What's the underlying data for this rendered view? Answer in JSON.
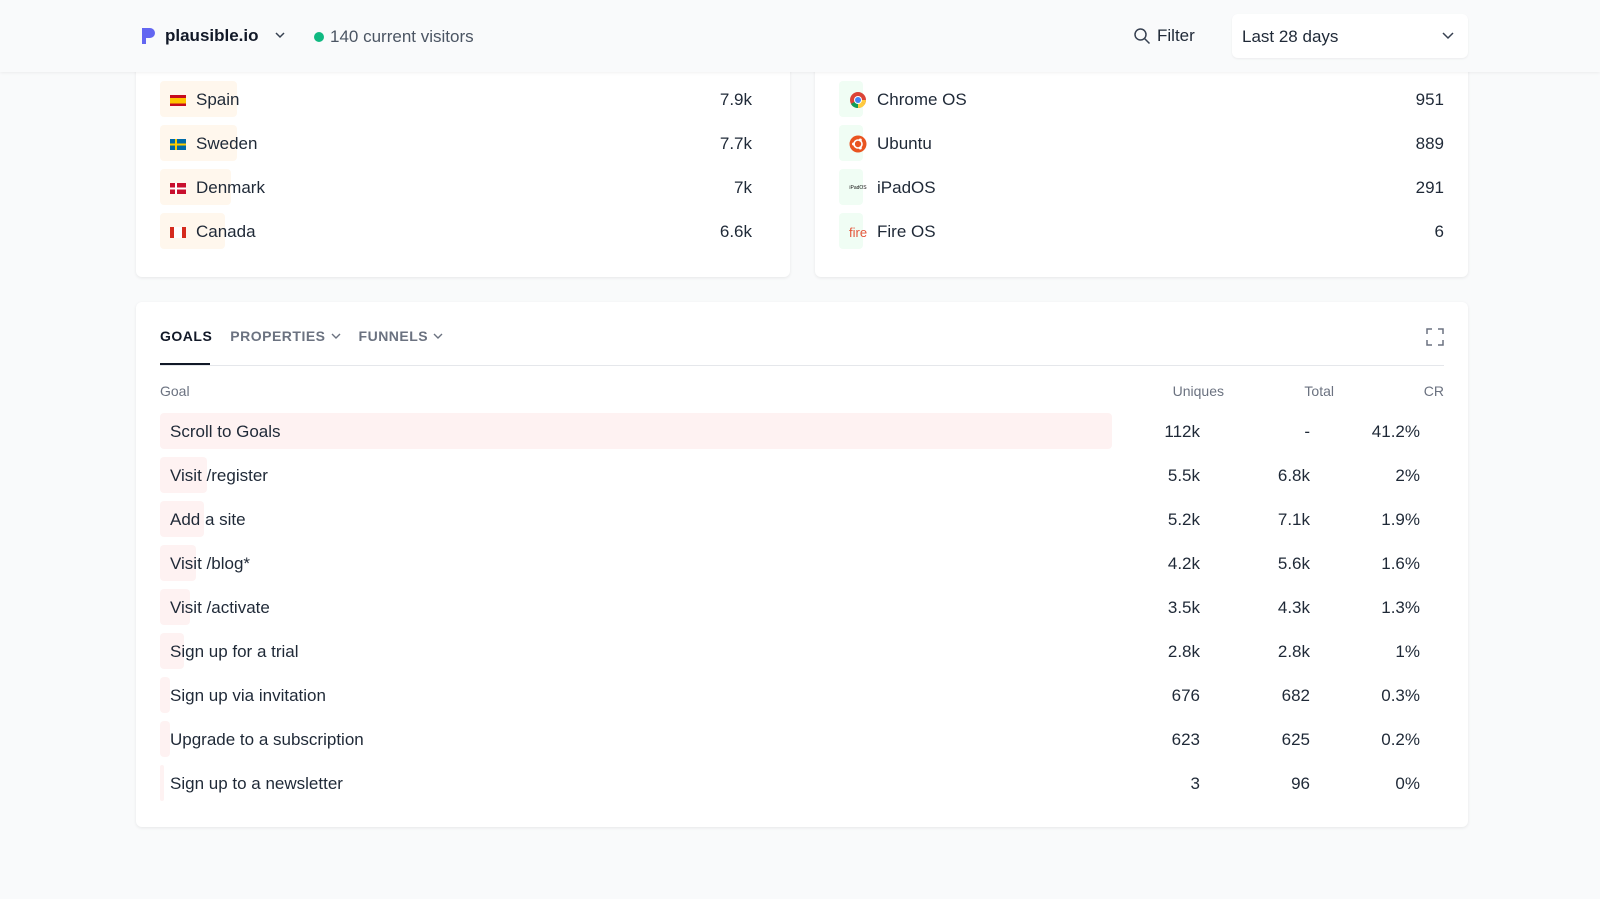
{
  "header": {
    "site": "plausible.io",
    "visitors": "140 current visitors",
    "filter": "Filter",
    "period": "Last 28 days"
  },
  "countries": [
    {
      "name": "Spain",
      "value": "7.9k",
      "bar": 0.13,
      "flag": "es"
    },
    {
      "name": "Sweden",
      "value": "7.7k",
      "bar": 0.13,
      "flag": "se"
    },
    {
      "name": "Denmark",
      "value": "7k",
      "bar": 0.12,
      "flag": "dk"
    },
    {
      "name": "Canada",
      "value": "6.6k",
      "bar": 0.11,
      "flag": "ca"
    }
  ],
  "os": [
    {
      "name": "Chrome OS",
      "value": "951",
      "icon": "chrome-icon"
    },
    {
      "name": "Ubuntu",
      "value": "889",
      "icon": "ubuntu-icon"
    },
    {
      "name": "iPadOS",
      "value": "291",
      "icon": "ipados-icon",
      "icon_text": "iPadOS"
    },
    {
      "name": "Fire OS",
      "value": "6",
      "icon": "fire-icon",
      "icon_text": "fire"
    }
  ],
  "goals": {
    "tabs": [
      "GOALS",
      "PROPERTIES",
      "FUNNELS"
    ],
    "columns": {
      "goal": "Goal",
      "uniques": "Uniques",
      "total": "Total",
      "cr": "CR"
    },
    "bar_color": "#fef2f2",
    "rows": [
      {
        "goal": "Scroll to Goals",
        "uniques": "112k",
        "total": "-",
        "cr": "41.2%",
        "bar": 1
      },
      {
        "goal": "Visit /register",
        "uniques": "5.5k",
        "total": "6.8k",
        "cr": "2%",
        "bar": 0.049
      },
      {
        "goal": "Add a site",
        "uniques": "5.2k",
        "total": "7.1k",
        "cr": "1.9%",
        "bar": 0.046
      },
      {
        "goal": "Visit /blog*",
        "uniques": "4.2k",
        "total": "5.6k",
        "cr": "1.6%",
        "bar": 0.038
      },
      {
        "goal": "Visit /activate",
        "uniques": "3.5k",
        "total": "4.3k",
        "cr": "1.3%",
        "bar": 0.031
      },
      {
        "goal": "Sign up for a trial",
        "uniques": "2.8k",
        "total": "2.8k",
        "cr": "1%",
        "bar": 0.025
      },
      {
        "goal": "Sign up via invitation",
        "uniques": "676",
        "total": "682",
        "cr": "0.3%",
        "bar": 0.006
      },
      {
        "goal": "Upgrade to a subscription",
        "uniques": "623",
        "total": "625",
        "cr": "0.2%",
        "bar": 0.006
      },
      {
        "goal": "Sign up to a newsletter",
        "uniques": "3",
        "total": "96",
        "cr": "0%",
        "bar": 0.0
      }
    ]
  }
}
